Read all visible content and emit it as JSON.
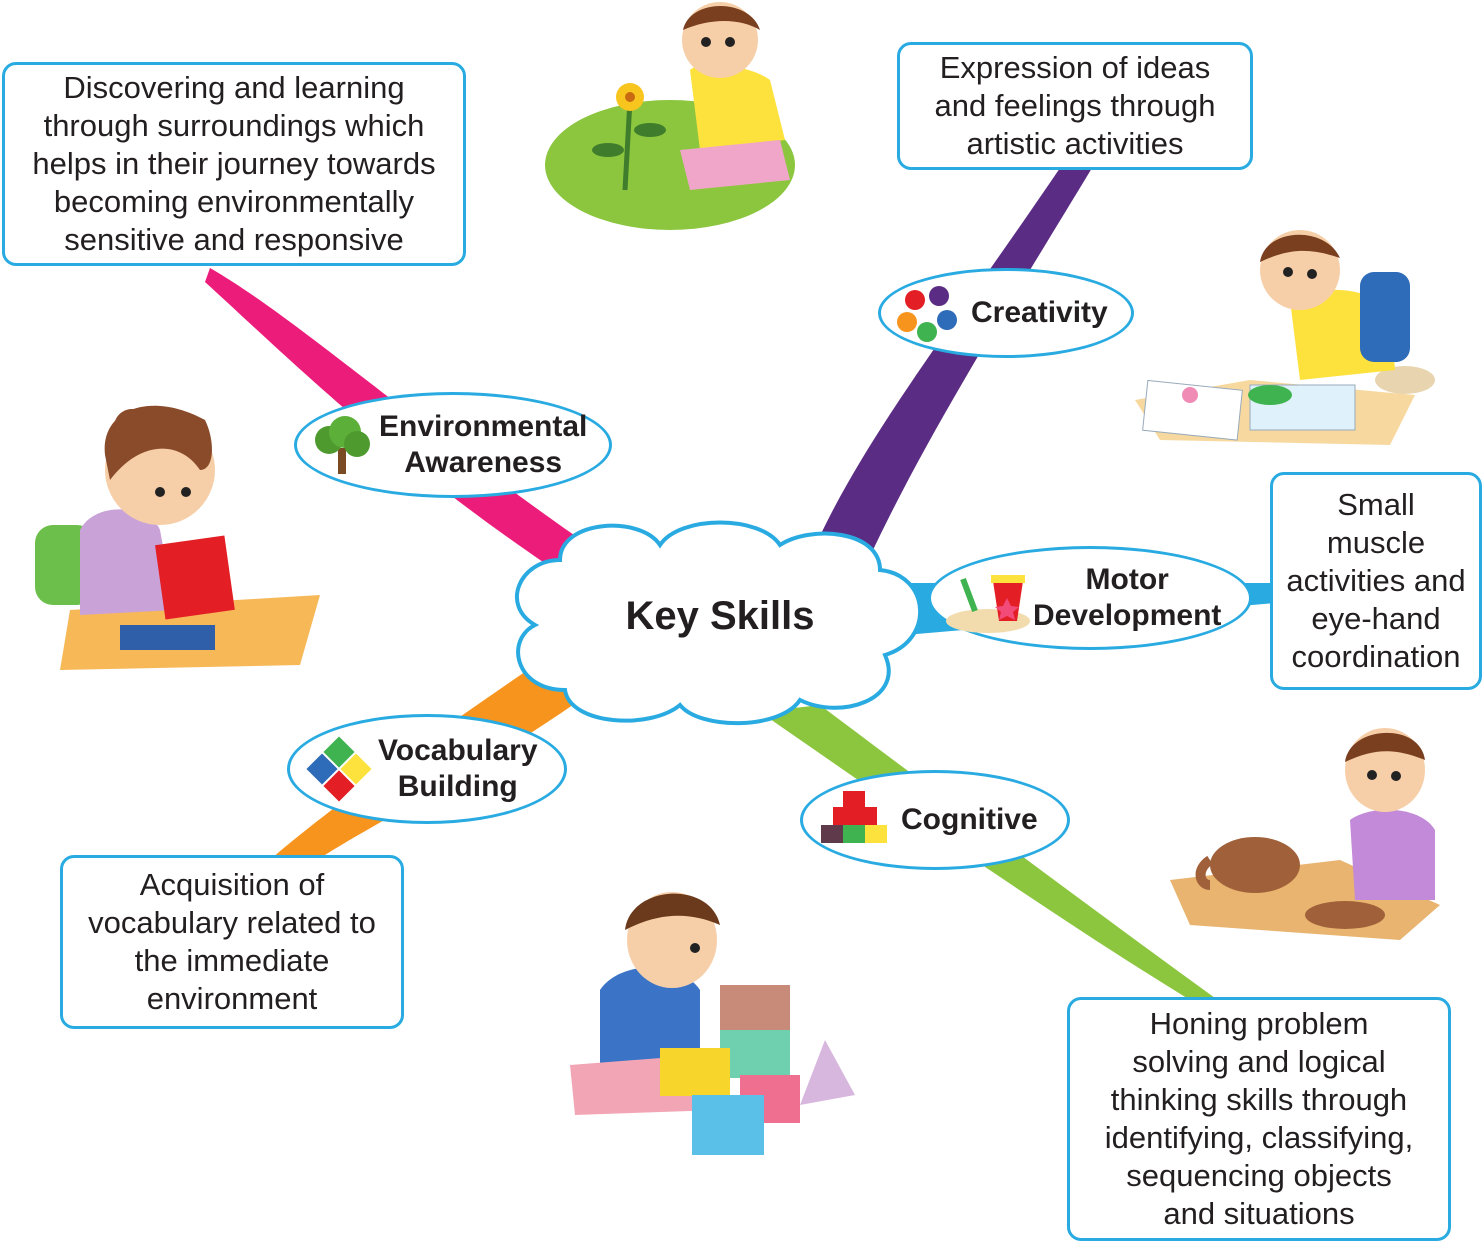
{
  "center": {
    "label": "Key Skills"
  },
  "colors": {
    "box_border": "#29abe2",
    "environmental": "#ec1c7a",
    "creativity": "#5b2c83",
    "motor": "#29abe2",
    "cognitive": "#8cc63f",
    "vocabulary": "#f7941d"
  },
  "skills": {
    "environmental": {
      "label_line1": "Environmental",
      "label_line2": "Awareness",
      "icon": "tree-icon",
      "description": [
        "Discovering and learning",
        "through surroundings which",
        "helps in their journey towards",
        "becoming environmentally",
        "sensitive and responsive"
      ],
      "illustration": "girl-reading-illustration"
    },
    "creativity": {
      "label_line1": "Creativity",
      "icon": "painted-hands-icon",
      "description": [
        "Expression of ideas",
        "and feelings through",
        "artistic activities"
      ],
      "illustration": "boy-painting-illustration"
    },
    "motor": {
      "label_line1": "Motor",
      "label_line2": "Development",
      "icon": "sand-bucket-icon",
      "description": [
        "Small",
        "muscle",
        "activities and",
        "eye-hand",
        "coordination"
      ],
      "illustration": "boy-with-clay-illustration"
    },
    "cognitive": {
      "label_line1": "Cognitive",
      "icon": "building-blocks-icon",
      "description": [
        "Honing problem",
        "solving and logical",
        "thinking skills through",
        "identifying, classifying,",
        "sequencing objects",
        "and situations"
      ],
      "illustration": "boy-stacking-blocks-illustration"
    },
    "vocabulary": {
      "label_line1": "Vocabulary",
      "label_line2": "Building",
      "icon": "abcd-puzzle-icon",
      "description": [
        "Acquisition of",
        "vocabulary related to",
        "the immediate",
        "environment"
      ],
      "illustration": "boy-with-flower-illustration"
    }
  }
}
